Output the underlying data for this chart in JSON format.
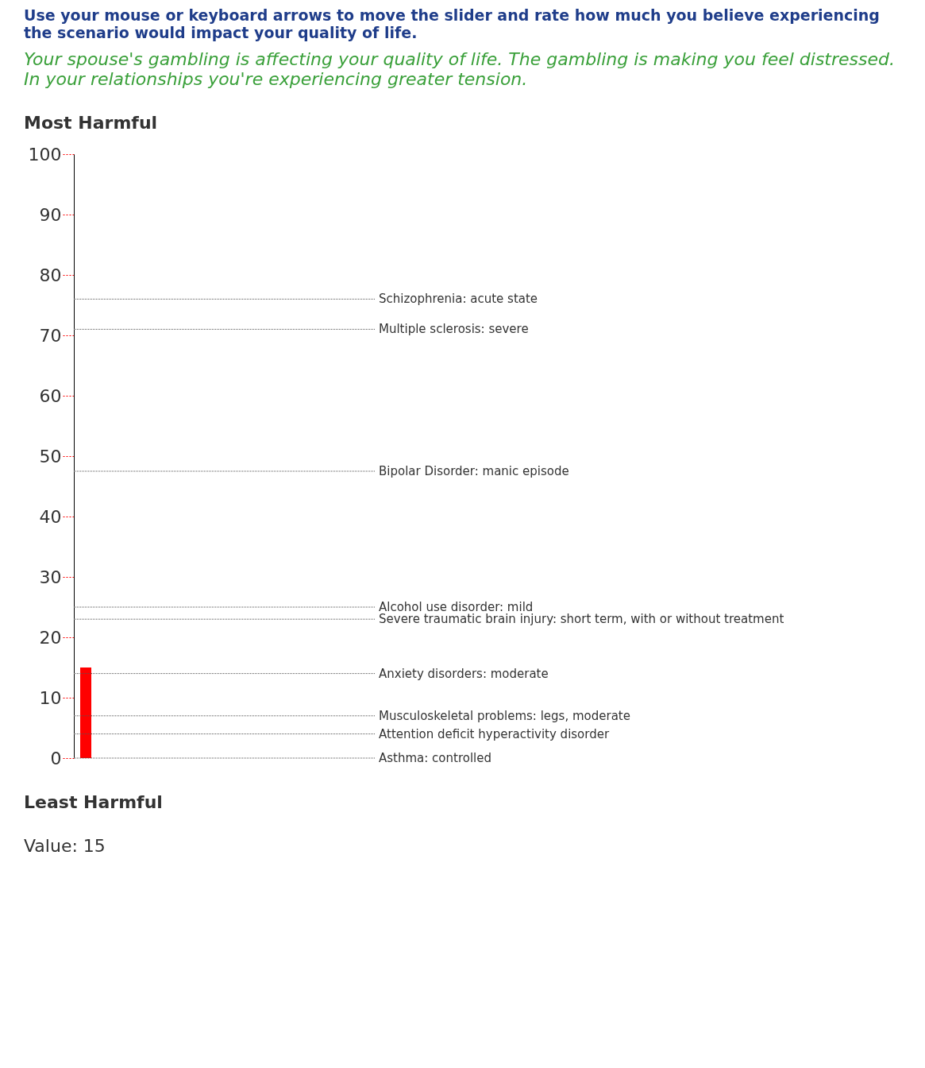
{
  "chart_data": {
    "type": "bar",
    "title": "Use your mouse or keyboard arrows to move the slider and rate how much you believe experiencing the scenario would impact your quality of life.",
    "subtitle": "Your spouse's gambling is affecting your quality of life. The gambling is making you feel distressed. In your relationships you're experiencing greater tension.",
    "categories": [
      null
    ],
    "values": [
      15
    ],
    "color": "#ff0000",
    "ylim": [
      0,
      100
    ],
    "yticks": [
      0,
      10,
      20,
      30,
      40,
      50,
      60,
      70,
      80,
      90,
      100
    ],
    "grid": false,
    "tick_labels": "y",
    "ref_lines": [
      {
        "axis": "y",
        "value": 76,
        "label": "Schizophrenia: acute state"
      },
      {
        "axis": "y",
        "value": 71,
        "label": "Multiple sclerosis: severe"
      },
      {
        "axis": "y",
        "value": 47.5,
        "label": "Bipolar Disorder: manic episode"
      },
      {
        "axis": "y",
        "value": 25,
        "label": "Alcohol use disorder: mild"
      },
      {
        "axis": "y",
        "value": 23,
        "label": "Severe traumatic brain injury: short term, with or without treatment"
      },
      {
        "axis": "y",
        "value": 14,
        "label": "Anxiety disorders: moderate"
      },
      {
        "axis": "y",
        "value": 7,
        "label": "Musculoskeletal problems: legs, moderate"
      },
      {
        "axis": "y",
        "value": 4,
        "label": "Attention deficit hyperactivity disorder"
      },
      {
        "axis": "y",
        "value": 0,
        "label": "Asthma: controlled"
      }
    ],
    "annotations": [
      "Most Harmful",
      "Least Harmful",
      "Value: 15"
    ]
  }
}
